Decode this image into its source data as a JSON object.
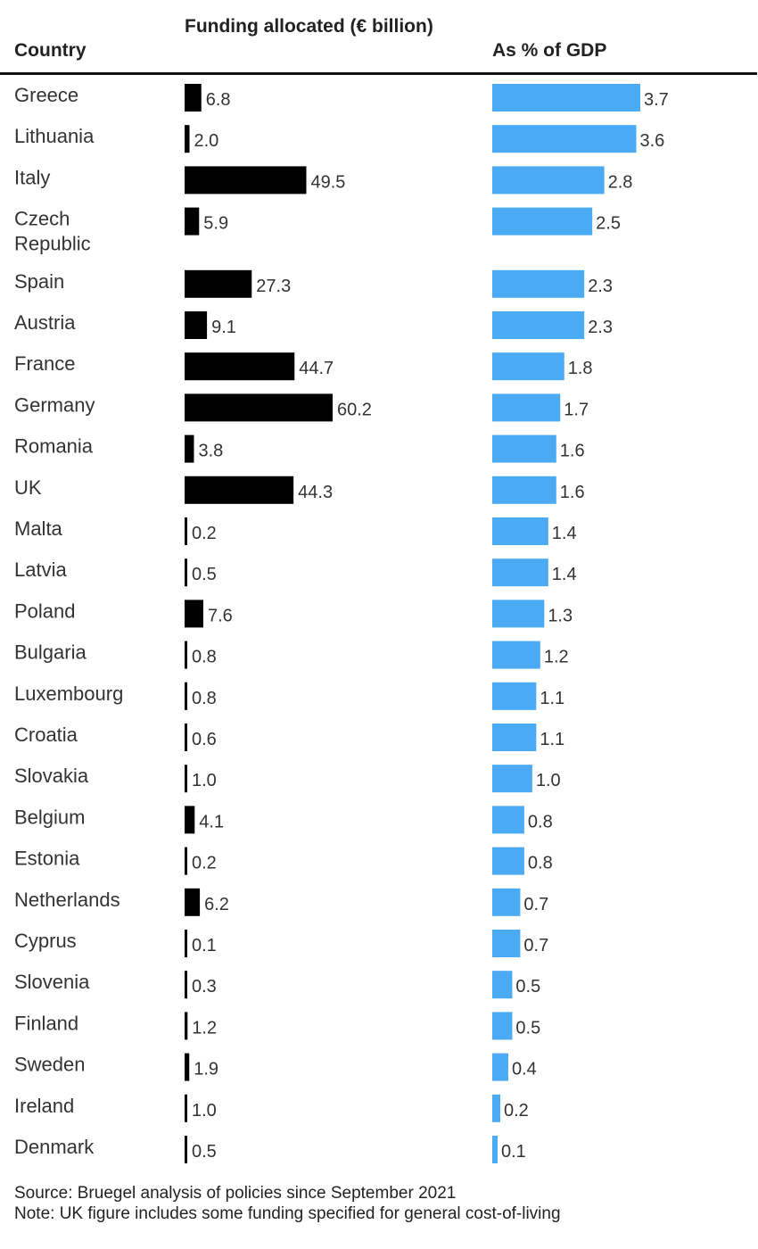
{
  "headers": {
    "country": "Country",
    "funding": "Funding allocated (€ billion)",
    "gdp": "As % of GDP"
  },
  "colors": {
    "funding_bar": "#000000",
    "gdp_bar": "#4aaaf4"
  },
  "chart_data": {
    "type": "table",
    "columns": [
      "Country",
      "Funding allocated (€ billion)",
      "As % of GDP"
    ],
    "rows": [
      {
        "country": "Greece",
        "funding": 6.8,
        "gdp": 3.7
      },
      {
        "country": "Lithuania",
        "funding": 2.0,
        "gdp": 3.6
      },
      {
        "country": "Italy",
        "funding": 49.5,
        "gdp": 2.8
      },
      {
        "country": "Czech\nRepublic",
        "funding": 5.9,
        "gdp": 2.5
      },
      {
        "country": "Spain",
        "funding": 27.3,
        "gdp": 2.3
      },
      {
        "country": "Austria",
        "funding": 9.1,
        "gdp": 2.3
      },
      {
        "country": "France",
        "funding": 44.7,
        "gdp": 1.8
      },
      {
        "country": "Germany",
        "funding": 60.2,
        "gdp": 1.7
      },
      {
        "country": "Romania",
        "funding": 3.8,
        "gdp": 1.6
      },
      {
        "country": "UK",
        "funding": 44.3,
        "gdp": 1.6
      },
      {
        "country": "Malta",
        "funding": 0.2,
        "gdp": 1.4
      },
      {
        "country": "Latvia",
        "funding": 0.5,
        "gdp": 1.4
      },
      {
        "country": "Poland",
        "funding": 7.6,
        "gdp": 1.3
      },
      {
        "country": "Bulgaria",
        "funding": 0.8,
        "gdp": 1.2
      },
      {
        "country": "Luxembourg",
        "funding": 0.8,
        "gdp": 1.1
      },
      {
        "country": "Croatia",
        "funding": 0.6,
        "gdp": 1.1
      },
      {
        "country": "Slovakia",
        "funding": 1.0,
        "gdp": 1.0
      },
      {
        "country": "Belgium",
        "funding": 4.1,
        "gdp": 0.8
      },
      {
        "country": "Estonia",
        "funding": 0.2,
        "gdp": 0.8
      },
      {
        "country": "Netherlands",
        "funding": 6.2,
        "gdp": 0.7
      },
      {
        "country": "Cyprus",
        "funding": 0.1,
        "gdp": 0.7
      },
      {
        "country": "Slovenia",
        "funding": 0.3,
        "gdp": 0.5
      },
      {
        "country": "Finland",
        "funding": 1.2,
        "gdp": 0.5
      },
      {
        "country": "Sweden",
        "funding": 1.9,
        "gdp": 0.4
      },
      {
        "country": "Ireland",
        "funding": 1.0,
        "gdp": 0.2
      },
      {
        "country": "Denmark",
        "funding": 0.5,
        "gdp": 0.1
      }
    ]
  },
  "footer": {
    "source": "Source: Bruegel analysis of policies since September 2021",
    "note": "Note: UK figure includes some funding specified for general cost-of-living"
  }
}
